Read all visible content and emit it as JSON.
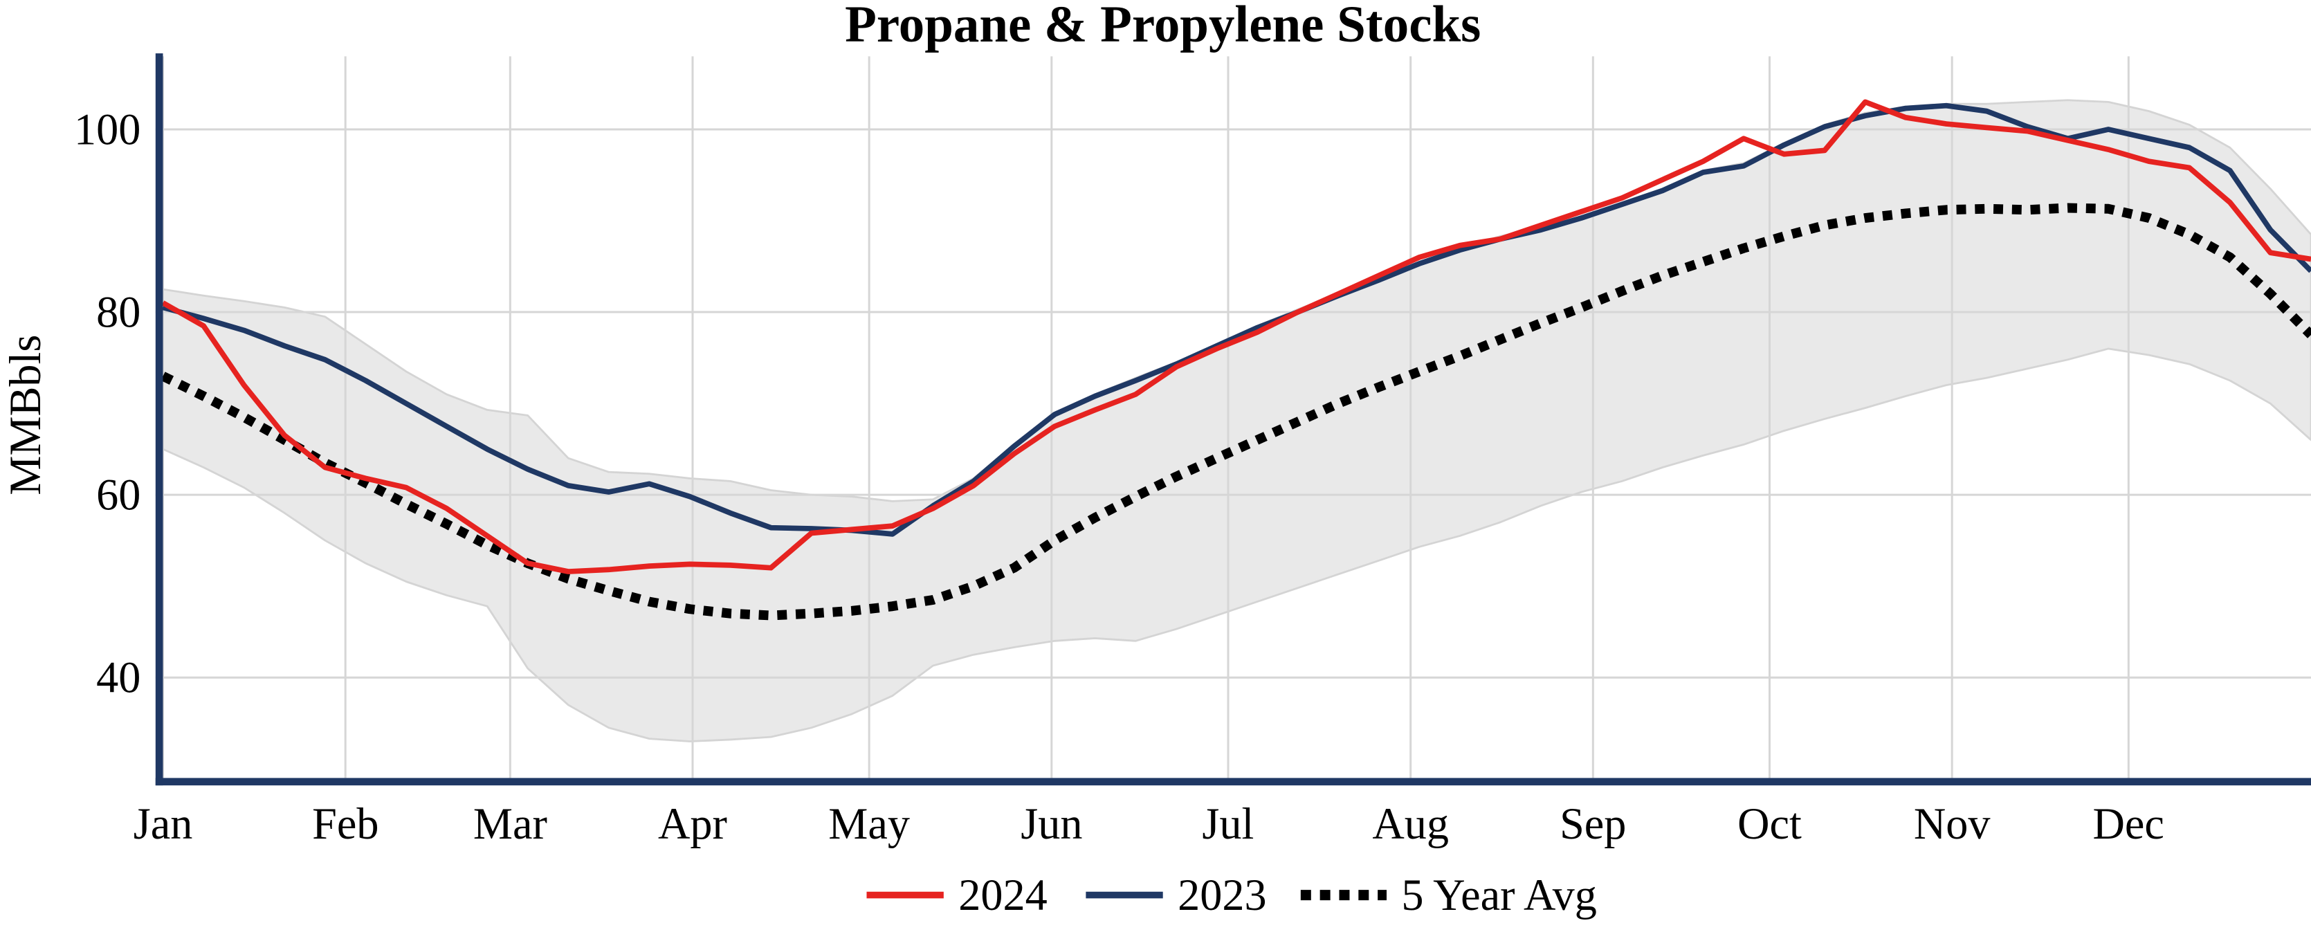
{
  "chart_data": {
    "type": "line",
    "title": "Propane & Propylene Stocks",
    "ylabel": "MMBbls",
    "x_resolution": "weekly",
    "x_tick_labels": [
      "Jan",
      "Feb",
      "Mar",
      "Apr",
      "May",
      "Jun",
      "Jul",
      "Aug",
      "Sep",
      "Oct",
      "Nov",
      "Dec"
    ],
    "month_start_days": [
      0,
      31,
      59,
      90,
      120,
      151,
      181,
      212,
      243,
      273,
      304,
      334
    ],
    "days_in_year": 365,
    "y_ticks": [
      40,
      60,
      80,
      100
    ],
    "ylim": [
      29,
      108
    ],
    "grid": true,
    "legend_position": "bottom",
    "colors": {
      "axis": "#1f3864",
      "grid": "#d6d6d6",
      "text": "#000000",
      "band_fill": "#e9e9e9",
      "band_edge": "#d4d4d4"
    },
    "band": {
      "name": "5-year range (shaded)",
      "upper": [
        82.5,
        81.8,
        81.2,
        80.5,
        79.5,
        76.5,
        73.5,
        71,
        69.3,
        68.7,
        64,
        62.5,
        62.3,
        61.8,
        61.5,
        60.5,
        60,
        59.8,
        59.3,
        59.5,
        61.8,
        65.5,
        69,
        71,
        72.8,
        74.5,
        76.5,
        78.5,
        80.3,
        82,
        83.8,
        85.5,
        87,
        88.3,
        89.3,
        90.5,
        92,
        93.5,
        95.5,
        96.3,
        98.5,
        100.5,
        101.8,
        102.5,
        102.8,
        102.8,
        103,
        103.2,
        103,
        102,
        100.5,
        98,
        93.5,
        88.5
      ],
      "lower": [
        65,
        63,
        60.8,
        58,
        55,
        52.5,
        50.5,
        49,
        47.8,
        41,
        37,
        34.5,
        33.3,
        33,
        33.2,
        33.5,
        34.5,
        36,
        38,
        41.3,
        42.5,
        43.3,
        44,
        44.3,
        44,
        45.3,
        46.8,
        48.3,
        49.8,
        51.3,
        52.8,
        54.3,
        55.5,
        57,
        58.8,
        60.3,
        61.5,
        63,
        64.3,
        65.5,
        67,
        68.3,
        69.5,
        70.8,
        72,
        72.8,
        73.8,
        74.8,
        76,
        75.3,
        74.3,
        72.5,
        70,
        66
      ]
    },
    "series": [
      {
        "name": "2024",
        "color": "#e62320",
        "style": "solid",
        "values": [
          81,
          78.5,
          72,
          66.5,
          63,
          61.8,
          60.8,
          58.5,
          55.5,
          52.5,
          51.6,
          51.8,
          52.2,
          52.4,
          52.3,
          52,
          55.8,
          56.2,
          56.6,
          58.5,
          61,
          64.5,
          67.5,
          69.3,
          71,
          74,
          76,
          77.8,
          80,
          82,
          84,
          86,
          87.3,
          88,
          89.5,
          91,
          92.5,
          94.5,
          96.5,
          99,
          97.3,
          97.7,
          103,
          101.3,
          100.6,
          100.2,
          99.8,
          98.8,
          97.8,
          96.5,
          95.8,
          92,
          86.5,
          85.8
        ]
      },
      {
        "name": "2023",
        "color": "#1f3864",
        "style": "solid",
        "values": [
          80.5,
          79.3,
          78,
          76.3,
          74.8,
          72.5,
          70,
          67.5,
          65,
          62.8,
          61,
          60.3,
          61.2,
          59.8,
          58,
          56.4,
          56.3,
          56.1,
          55.7,
          58.8,
          61.5,
          65.3,
          68.8,
          70.8,
          72.5,
          74.3,
          76.3,
          78.3,
          80,
          81.8,
          83.5,
          85.3,
          86.8,
          88,
          89,
          90.3,
          91.8,
          93.3,
          95.3,
          96,
          98.3,
          100.3,
          101.5,
          102.3,
          102.6,
          102,
          100.3,
          99,
          100,
          99,
          98,
          95.5,
          89,
          84.5
        ]
      },
      {
        "name": "5 Year Avg",
        "color": "#000000",
        "style": "dotted",
        "values": [
          73,
          70.8,
          68.5,
          66,
          63.5,
          61.3,
          59,
          56.8,
          54.5,
          52.5,
          50.8,
          49.5,
          48.3,
          47.5,
          47,
          46.8,
          47,
          47.3,
          47.8,
          48.5,
          50,
          52,
          55,
          57.5,
          59.8,
          62,
          64,
          66,
          68,
          70,
          71.8,
          73.5,
          75.2,
          77,
          78.8,
          80.5,
          82.3,
          84,
          85.5,
          87,
          88.3,
          89.5,
          90.3,
          90.8,
          91.2,
          91.3,
          91.2,
          91.4,
          91.3,
          90.3,
          88.5,
          86,
          82,
          77.5
        ]
      }
    ]
  }
}
